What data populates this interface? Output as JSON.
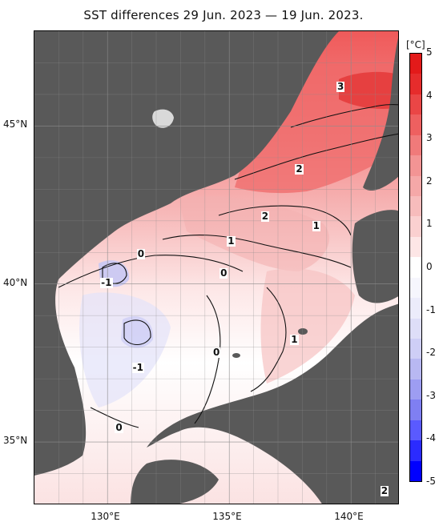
{
  "title": "SST differences 29 Jun. 2023 — 19 Jun. 2023.",
  "map": {
    "x_ticks": [
      {
        "label": "130°E",
        "lon": 130
      },
      {
        "label": "135°E",
        "lon": 135
      },
      {
        "label": "140°E",
        "lon": 140
      }
    ],
    "y_ticks": [
      {
        "label": "45°N",
        "lat": 45
      },
      {
        "label": "40°N",
        "lat": 40
      },
      {
        "label": "35°N",
        "lat": 35
      }
    ],
    "lon_range": [
      127,
      142
    ],
    "lat_range": [
      33,
      48
    ],
    "contour_labels": [
      {
        "text": "3",
        "lon": 139.6,
        "lat": 46.2
      },
      {
        "text": "2",
        "lon": 137.9,
        "lat": 43.6
      },
      {
        "text": "2",
        "lon": 136.5,
        "lat": 42.1
      },
      {
        "text": "1",
        "lon": 138.6,
        "lat": 41.8
      },
      {
        "text": "1",
        "lon": 135.1,
        "lat": 41.3
      },
      {
        "text": "0",
        "lon": 131.4,
        "lat": 40.9
      },
      {
        "text": "0",
        "lon": 134.8,
        "lat": 40.3
      },
      {
        "text": "-1",
        "lon": 129.9,
        "lat": 40.0
      },
      {
        "text": "1",
        "lon": 137.7,
        "lat": 38.2
      },
      {
        "text": "0",
        "lon": 134.5,
        "lat": 37.8
      },
      {
        "text": "-1",
        "lon": 131.2,
        "lat": 37.3
      },
      {
        "text": "0",
        "lon": 130.5,
        "lat": 35.4
      },
      {
        "text": "2",
        "lon": 141.4,
        "lat": 33.4
      }
    ]
  },
  "legend": {
    "unit": "[°C]",
    "ticks": [
      "5",
      "4",
      "3",
      "2",
      "1",
      "0",
      "-1",
      "-2",
      "-3",
      "-4",
      "-5"
    ],
    "range": [
      -5,
      5
    ],
    "colors": [
      "#0000ff",
      "#2b2bff",
      "#5a5aff",
      "#7f7ff2",
      "#9d9df2",
      "#b8b8f2",
      "#ceceF6",
      "#dedef8",
      "#ececfb",
      "#f6f6fd",
      "#ffffff",
      "#fde6e6",
      "#fad0d0",
      "#f7bcbc",
      "#f5a8a8",
      "#f39494",
      "#f07a7a",
      "#ee6060",
      "#ea4646",
      "#e62c2c",
      "#e31a1a"
    ]
  },
  "colors": {
    "land": "#595959",
    "grid": "#8c8c8c"
  }
}
